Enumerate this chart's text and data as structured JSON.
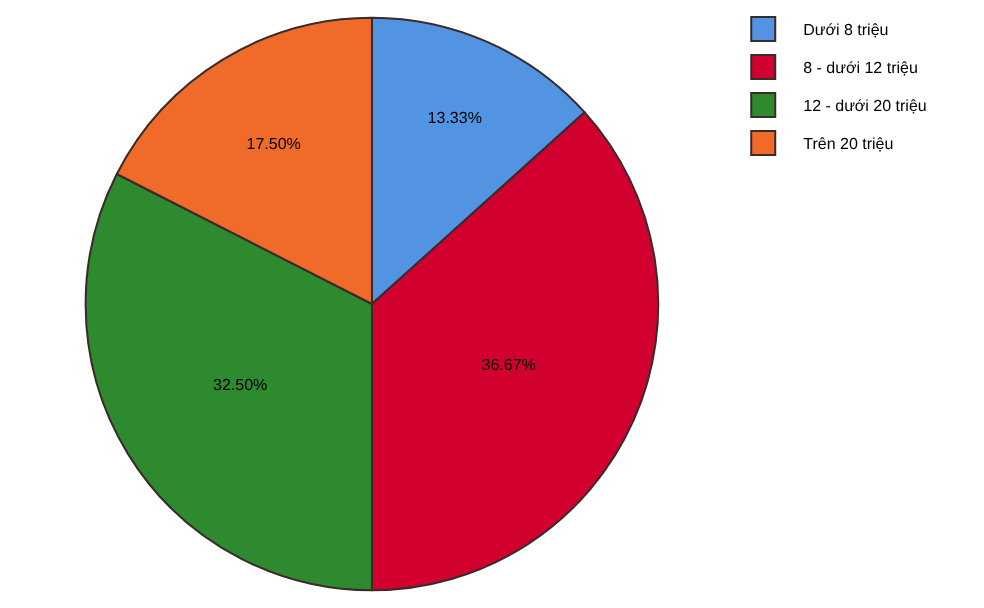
{
  "chart_data": {
    "type": "pie",
    "categories": [
      "Dưới 8 triệu",
      "8 - dưới 12 triệu",
      "12 - dưới 20 triệu",
      "Trên 20 triệu"
    ],
    "values": [
      13.33,
      36.67,
      32.5,
      17.5
    ],
    "value_labels": [
      "13.33%",
      "36.67%",
      "32.50%",
      "17.50%"
    ],
    "colors": [
      "#5294e2",
      "#d2002e",
      "#2e8a2e",
      "#f06b2a"
    ],
    "legend": "top right"
  }
}
